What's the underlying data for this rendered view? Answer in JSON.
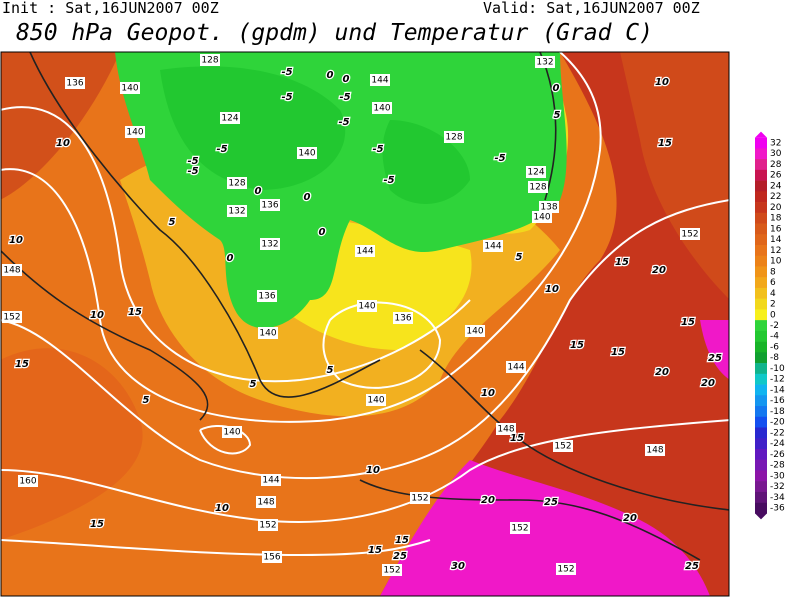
{
  "header": {
    "init": "Init : Sat,16JUN2007 00Z",
    "valid": "Valid: Sat,16JUN2007 00Z",
    "title": "850 hPa Geopot. (gpdm) und Temperatur (Grad C)"
  },
  "legend": {
    "labels": [
      32,
      30,
      28,
      26,
      24,
      22,
      20,
      18,
      16,
      14,
      12,
      10,
      8,
      6,
      4,
      2,
      0,
      -2,
      -4,
      -6,
      -8,
      -10,
      -12,
      -14,
      -16,
      -18,
      -20,
      -22,
      -24,
      -26,
      -28,
      -30,
      -32,
      -34,
      -36
    ],
    "colors": [
      "#f000f0",
      "#f018c8",
      "#e0208c",
      "#c81450",
      "#b41e28",
      "#c0281e",
      "#c7361c",
      "#d04a1a",
      "#d85a1a",
      "#e0661a",
      "#e8741a",
      "#ec8218",
      "#f09418",
      "#f2a81a",
      "#f2c01c",
      "#f2d81c",
      "#f7f01c",
      "#2fd43a",
      "#22c830",
      "#18b428",
      "#10a030",
      "#10b48c",
      "#10c8c8",
      "#10b4f0",
      "#1496f0",
      "#1478f0",
      "#1450f0",
      "#2828d0",
      "#4020c8",
      "#6018c0",
      "#7818b4",
      "#8c14a8",
      "#781890",
      "#601478",
      "#480c60"
    ]
  },
  "map": {
    "height_labels": [
      136,
      128,
      140,
      124,
      140,
      128,
      132,
      136,
      140,
      132,
      136,
      140,
      144,
      140,
      128,
      124,
      128,
      138,
      140,
      132,
      144,
      144,
      140,
      136,
      140,
      144,
      140,
      140,
      148,
      144,
      148,
      152,
      152,
      152,
      152,
      148,
      148,
      152,
      160,
      156,
      152,
      152,
      152
    ],
    "temp_labels": [
      10,
      10,
      5,
      15,
      10,
      15,
      5,
      5,
      5,
      10,
      15,
      10,
      10,
      15,
      15,
      15,
      25,
      20,
      25,
      30,
      20,
      25,
      10,
      15,
      15,
      15,
      20,
      15,
      25,
      20,
      20,
      15,
      10,
      5,
      0,
      5,
      -5,
      -5,
      -5,
      0,
      -5,
      -5,
      -5,
      -5,
      -5,
      -5,
      0,
      0,
      -5,
      0,
      0,
      0
    ]
  }
}
